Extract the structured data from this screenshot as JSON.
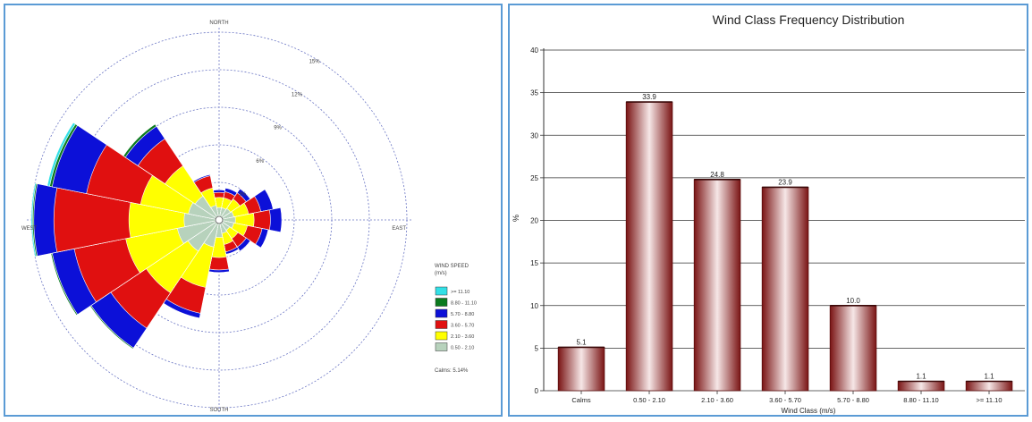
{
  "chart_data": [
    {
      "type": "wind-rose",
      "directions": [
        "N",
        "NNE",
        "NE",
        "ENE",
        "E",
        "ESE",
        "SE",
        "SSE",
        "S",
        "SSW",
        "SW",
        "WSW",
        "W",
        "WNW",
        "NW",
        "NNW"
      ],
      "direction_labels": {
        "north": "NORTH",
        "east": "EAST",
        "south": "SOUTH",
        "west": "WEST"
      },
      "ring_labels": [
        "3%",
        "6%",
        "9%",
        "12%",
        "15%"
      ],
      "rings_percent": [
        3,
        6,
        9,
        12,
        15
      ],
      "legend": {
        "title": "WIND SPEED",
        "unit": "(m/s)",
        "calms": "Calms: 5.14%",
        "classes": [
          {
            "label": ">= 11.10",
            "color": "#33e0e6"
          },
          {
            "label": "8.80 - 11.10",
            "color": "#0a7a1e"
          },
          {
            "label": "5.70 - 8.80",
            "color": "#0c10d8"
          },
          {
            "label": "3.60 - 5.70",
            "color": "#e01010"
          },
          {
            "label": "2.10 - 3.60",
            "color": "#ffff00"
          },
          {
            "label": "0.50 - 2.10",
            "color": "#b7d2bc"
          }
        ]
      },
      "cumulative_percent_by_direction": [
        [
          1.0,
          1.8,
          2.2,
          2.4,
          2.4,
          2.4
        ],
        [
          1.0,
          1.8,
          2.3,
          2.6,
          2.6,
          2.6
        ],
        [
          1.1,
          2.0,
          2.6,
          3.0,
          3.0,
          3.0
        ],
        [
          1.2,
          2.4,
          3.4,
          4.4,
          4.4,
          4.4
        ],
        [
          1.3,
          2.8,
          4.1,
          5.0,
          5.0,
          5.0
        ],
        [
          1.2,
          2.3,
          3.5,
          4.0,
          4.0,
          4.0
        ],
        [
          1.0,
          1.8,
          2.6,
          3.0,
          3.0,
          3.0
        ],
        [
          1.1,
          2.0,
          2.6,
          2.8,
          2.8,
          2.8
        ],
        [
          1.4,
          3.0,
          4.0,
          4.2,
          4.2,
          4.2
        ],
        [
          2.2,
          5.5,
          7.6,
          8.0,
          8.0,
          8.0
        ],
        [
          3.0,
          7.0,
          10.4,
          12.3,
          12.4,
          12.4
        ],
        [
          3.4,
          7.6,
          11.8,
          13.6,
          13.7,
          13.7
        ],
        [
          2.8,
          7.2,
          13.2,
          14.8,
          14.9,
          15.0
        ],
        [
          2.5,
          6.4,
          10.8,
          13.6,
          13.8,
          14.0
        ],
        [
          2.3,
          5.2,
          7.8,
          9.0,
          9.2,
          9.2
        ],
        [
          1.2,
          2.6,
          3.6,
          3.7,
          3.7,
          3.7
        ]
      ]
    },
    {
      "type": "bar",
      "title": "Wind Class Frequency Distribution",
      "xlabel": "Wind Class (m/s)",
      "ylabel": "%",
      "categories": [
        "Calms",
        "0.50 - 2.10",
        "2.10 - 3.60",
        "3.60 - 5.70",
        "5.70 - 8.80",
        "8.80 - 11.10",
        ">= 11.10"
      ],
      "values": [
        5.1,
        33.9,
        24.8,
        23.9,
        10.0,
        1.1,
        1.1
      ],
      "value_labels": [
        "5.1",
        "33.9",
        "24.8",
        "23.9",
        "10.0",
        "1.1",
        "1.1"
      ],
      "ylim": [
        0,
        40
      ],
      "yticks": [
        "0",
        "5",
        "10",
        "15",
        "20",
        "25",
        "30",
        "35",
        "40"
      ],
      "ytick_values": [
        0,
        5,
        10,
        15,
        20,
        25,
        30,
        35,
        40
      ],
      "grid": true,
      "bar_color": "#8b1a1a"
    }
  ]
}
